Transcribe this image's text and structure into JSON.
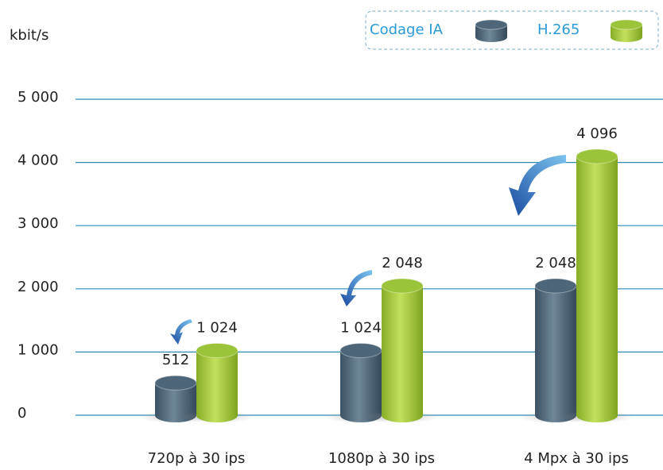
{
  "chart_data": {
    "type": "bar",
    "y_label": "kbit/s",
    "categories": [
      "720p à 30 ips",
      "1080p à 30 ips",
      "4 Mpx à 30 ips"
    ],
    "series": [
      {
        "name": "Codage IA",
        "color": "#4d6679",
        "values": [
          512,
          1024,
          2048
        ],
        "value_labels": [
          "512",
          "1 024",
          "2 048"
        ]
      },
      {
        "name": "H.265",
        "color": "#9cc43a",
        "values": [
          1024,
          2048,
          4096
        ],
        "value_labels": [
          "1 024",
          "2 048",
          "4 096"
        ]
      }
    ],
    "ylim": [
      0,
      5000
    ],
    "yticks": [
      0,
      {
        "value": 1000,
        "label": "1 000"
      },
      {
        "value": 2000,
        "label": "2 000"
      },
      {
        "value": 3000,
        "label": "3 000"
      },
      {
        "value": 4000,
        "label": "4 000"
      },
      {
        "value": 5000,
        "label": "5 000"
      }
    ],
    "grid": true,
    "legend": "top-right"
  }
}
